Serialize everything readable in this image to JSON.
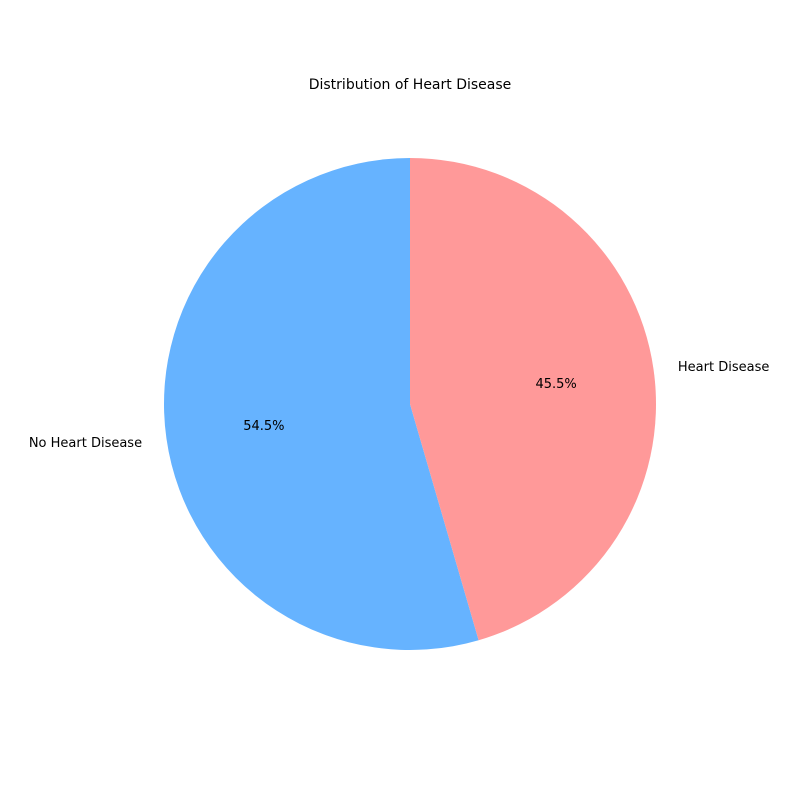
{
  "chart_data": {
    "type": "pie",
    "title": "Distribution of Heart Disease",
    "categories": [
      "No Heart Disease",
      "Heart Disease"
    ],
    "values": [
      54.5,
      45.5
    ],
    "percent_labels": [
      "54.5%",
      "45.5%"
    ],
    "colors": [
      "#66b3ff",
      "#ff9999"
    ],
    "start_angle_deg": 90,
    "direction": "counterclockwise",
    "legend": "none"
  }
}
